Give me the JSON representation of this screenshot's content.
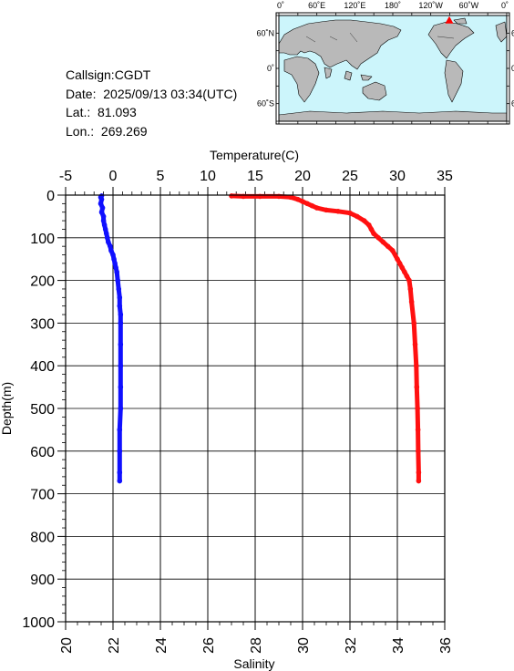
{
  "station": {
    "callsign": "Callsign:CGDT",
    "date": "Date:  2025/09/13 03:34(UTC)",
    "lat": "Lat.:  81.093",
    "lon": "Lon.:  269.269"
  },
  "map": {
    "lon_labels": [
      "0˚",
      "60˚E",
      "120˚E",
      "180˚",
      "120˚W",
      "60˚W",
      "0˚"
    ],
    "lat_labels": [
      "60˚N",
      "0˚",
      "60˚S"
    ],
    "station_marker": {
      "lon": 269.269,
      "lat": 81.093,
      "color": "#ff0000"
    },
    "ocean_color": "#ccf5fb",
    "land_color": "#b9b9b9"
  },
  "chart_data": {
    "type": "line",
    "ylabel": "Depth(m)",
    "ylim": [
      0,
      1000
    ],
    "y_ticks": [
      0,
      100,
      200,
      300,
      400,
      500,
      600,
      700,
      800,
      900,
      1000
    ],
    "top_axis": {
      "label": "Temperature(C)",
      "lim": [
        -5,
        35
      ],
      "ticks": [
        -5,
        0,
        5,
        10,
        15,
        20,
        25,
        30,
        35
      ]
    },
    "bottom_axis": {
      "label": "Salinity",
      "lim": [
        20,
        36
      ],
      "ticks": [
        20,
        22,
        24,
        26,
        28,
        30,
        32,
        34,
        36
      ]
    },
    "grid": true,
    "series": [
      {
        "axis": "top",
        "color": "#1010ff",
        "points": [
          [
            -1.2,
            2
          ],
          [
            -1.3,
            5
          ],
          [
            -1.2,
            10
          ],
          [
            -1.3,
            20
          ],
          [
            -1.1,
            30
          ],
          [
            -1.2,
            40
          ],
          [
            -1.0,
            50
          ],
          [
            -1.0,
            60
          ],
          [
            -0.9,
            70
          ],
          [
            -0.8,
            80
          ],
          [
            -0.7,
            90
          ],
          [
            -0.6,
            100
          ],
          [
            -0.5,
            110
          ],
          [
            -0.3,
            120
          ],
          [
            -0.2,
            130
          ],
          [
            0.0,
            140
          ],
          [
            0.1,
            150
          ],
          [
            0.2,
            160
          ],
          [
            0.3,
            170
          ],
          [
            0.4,
            180
          ],
          [
            0.5,
            200
          ],
          [
            0.6,
            220
          ],
          [
            0.7,
            240
          ],
          [
            0.7,
            260
          ],
          [
            0.8,
            280
          ],
          [
            0.8,
            300
          ],
          [
            0.8,
            350
          ],
          [
            0.8,
            400
          ],
          [
            0.8,
            450
          ],
          [
            0.8,
            500
          ],
          [
            0.7,
            550
          ],
          [
            0.7,
            600
          ],
          [
            0.7,
            650
          ],
          [
            0.7,
            670
          ]
        ]
      },
      {
        "axis": "bottom",
        "color": "#ff1010",
        "points": [
          [
            27.0,
            2
          ],
          [
            27.5,
            3
          ],
          [
            28.2,
            3
          ],
          [
            29.0,
            3
          ],
          [
            29.5,
            5
          ],
          [
            29.8,
            10
          ],
          [
            30.0,
            15
          ],
          [
            30.2,
            20
          ],
          [
            30.4,
            25
          ],
          [
            30.6,
            30
          ],
          [
            31.0,
            35
          ],
          [
            31.5,
            38
          ],
          [
            32.0,
            42
          ],
          [
            32.3,
            50
          ],
          [
            32.6,
            60
          ],
          [
            32.8,
            70
          ],
          [
            32.9,
            80
          ],
          [
            33.0,
            90
          ],
          [
            33.2,
            100
          ],
          [
            33.4,
            110
          ],
          [
            33.6,
            120
          ],
          [
            33.8,
            130
          ],
          [
            34.0,
            150
          ],
          [
            34.1,
            160
          ],
          [
            34.2,
            170
          ],
          [
            34.3,
            180
          ],
          [
            34.4,
            190
          ],
          [
            34.5,
            200
          ],
          [
            34.55,
            220
          ],
          [
            34.6,
            250
          ],
          [
            34.7,
            300
          ],
          [
            34.75,
            350
          ],
          [
            34.8,
            400
          ],
          [
            34.82,
            450
          ],
          [
            34.85,
            500
          ],
          [
            34.87,
            550
          ],
          [
            34.88,
            600
          ],
          [
            34.9,
            650
          ],
          [
            34.9,
            670
          ]
        ]
      }
    ]
  }
}
